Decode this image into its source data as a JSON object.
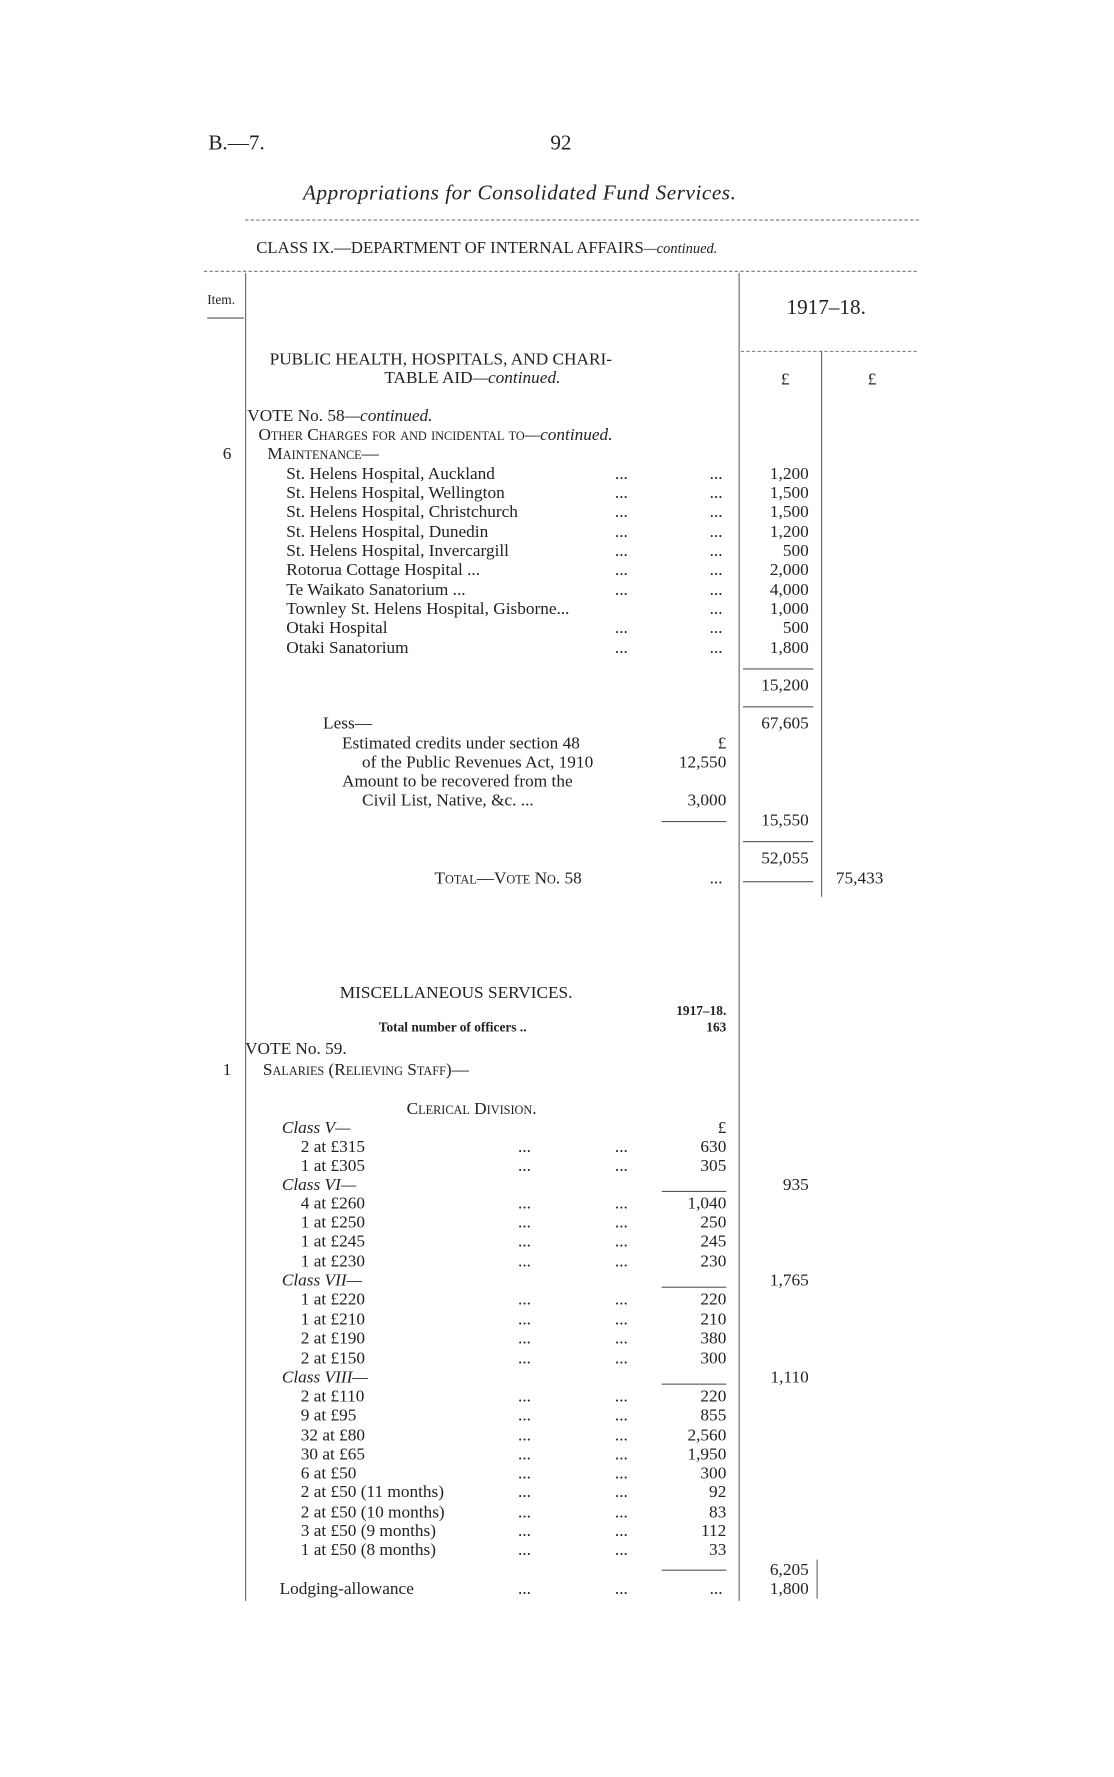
{
  "header": {
    "code": "B.—7.",
    "page_number": "92",
    "title": "Appropriations for Consolidated Fund Services.",
    "class_title": "CLASS IX.—DEPARTMENT OF INTERNAL AFFAIRS",
    "class_title_em": "—continued."
  },
  "table_header": {
    "item": "Item.",
    "year": "1917–18.",
    "currency_1": "£",
    "currency_2": "£"
  },
  "rows": [
    {
      "text": "PUBLIC HEALTH, HOSPITALS, AND CHARI-",
      "indent": 242
    },
    {
      "text": "TABLE AID",
      "em": "—continued.",
      "indent": 345
    },
    {
      "text": "VOTE No. 58",
      "em": "—continued.",
      "indent": 222
    },
    {
      "text": "Other Charges for and incidental to",
      "em": "—continued.",
      "indent": 232,
      "sc": true
    },
    {
      "item": "6",
      "text": "Maintenance—",
      "indent": 240,
      "sc": true
    },
    {
      "text": "St. Helens Hospital, Auckland",
      "indent": 257,
      "dots": true,
      "c1": "1,200"
    },
    {
      "text": "St. Helens Hospital, Wellington",
      "indent": 257,
      "dots": true,
      "c1": "1,500"
    },
    {
      "text": "St. Helens Hospital, Christchurch",
      "indent": 257,
      "dots": true,
      "c1": "1,500"
    },
    {
      "text": "St. Helens Hospital, Dunedin",
      "indent": 257,
      "dots": true,
      "c1": "1,200"
    },
    {
      "text": "St. Helens Hospital, Invercargill",
      "indent": 257,
      "dots": true,
      "c1": "500"
    },
    {
      "text": "Rotorua Cottage Hospital   ...",
      "indent": 257,
      "dots": true,
      "c1": "2,000"
    },
    {
      "text": "Te Waikato Sanatorium      ...",
      "indent": 257,
      "dots": true,
      "c1": "4,000"
    },
    {
      "text": "Townley St. Helens Hospital, Gisborne...",
      "indent": 257,
      "dots2": true,
      "c1": "1,000"
    },
    {
      "text": "Otaki Hospital",
      "indent": 257,
      "dots": true,
      "c1": "500"
    },
    {
      "text": "Otaki Sanatorium",
      "indent": 257,
      "dots": true,
      "c1": "1,800"
    },
    {
      "c1": "15,200"
    },
    {
      "text": "Less—",
      "indent": 290,
      "c1": "67,605"
    },
    {
      "text": "Estimated credits under section 48",
      "indent": 307,
      "c0": "£"
    },
    {
      "text": "of the Public Revenues Act, 1910",
      "indent": 325,
      "c0": "12,550"
    },
    {
      "text": "Amount to be recovered from the",
      "indent": 307
    },
    {
      "text": "Civil List, Native, &c.        ...",
      "indent": 325,
      "c0": "3,000"
    },
    {
      "c1": "15,550"
    },
    {
      "c1": "52,055"
    },
    {
      "text": "Total—Vote No. 58",
      "indent": 390,
      "sc": true,
      "dots2": true,
      "c2": "75,433"
    },
    {
      "text": "MISCELLANEOUS SERVICES.",
      "indent": 305
    },
    {
      "c0": "1917–18.",
      "small": true
    },
    {
      "text": "Total number of officers          ..",
      "indent": 340,
      "small": true,
      "c0": "163"
    },
    {
      "text": "VOTE No. 59.",
      "indent": 220
    },
    {
      "item": "1",
      "text": "Salaries (Relieving Staff)—",
      "indent": 236,
      "sc": true
    },
    {
      "text": "Clerical Division.",
      "indent": 365,
      "sc": true
    },
    {
      "text": "Class V—",
      "indent": 253,
      "italic": true,
      "c0": "£"
    },
    {
      "text": "2 at £315",
      "indent": 270,
      "dots": true,
      "c0": "630"
    },
    {
      "text": "1 at £305",
      "indent": 270,
      "dots": true,
      "c0": "305"
    },
    {
      "text": "Class VI—",
      "indent": 253,
      "italic": true,
      "c1": "935"
    },
    {
      "text": "4 at £260",
      "indent": 270,
      "dots": true,
      "c0": "1,040"
    },
    {
      "text": "1 at £250",
      "indent": 270,
      "dots": true,
      "c0": "250"
    },
    {
      "text": "1 at £245",
      "indent": 270,
      "dots": true,
      "c0": "245"
    },
    {
      "text": "1 at £230",
      "indent": 270,
      "dots": true,
      "c0": "230"
    },
    {
      "text": "Class VII—",
      "indent": 253,
      "italic": true,
      "c1": "1,765"
    },
    {
      "text": "1 at £220",
      "indent": 270,
      "dots": true,
      "c0": "220"
    },
    {
      "text": "1 at £210",
      "indent": 270,
      "dots": true,
      "c0": "210"
    },
    {
      "text": "2 at £190",
      "indent": 270,
      "dots": true,
      "c0": "380"
    },
    {
      "text": "2 at £150",
      "indent": 270,
      "dots": true,
      "c0": "300"
    },
    {
      "text": "Class VIII—",
      "indent": 253,
      "italic": true,
      "c1": "1,110"
    },
    {
      "text": "2 at £110",
      "indent": 270,
      "dots": true,
      "c0": "220"
    },
    {
      "text": "9 at £95",
      "indent": 270,
      "dots": true,
      "c0": "855"
    },
    {
      "text": "32 at £80",
      "indent": 270,
      "dots": true,
      "c0": "2,560"
    },
    {
      "text": "30 at £65",
      "indent": 270,
      "dots": true,
      "c0": "1,950"
    },
    {
      "text": "6 at £50",
      "indent": 270,
      "dots": true,
      "c0": "300"
    },
    {
      "text": "2 at £50 (11 months)",
      "indent": 270,
      "dots": true,
      "c0": "92"
    },
    {
      "text": "2 at £50 (10 months)",
      "indent": 270,
      "dots": true,
      "c0": "83"
    },
    {
      "text": "3 at £50 (9 months)",
      "indent": 270,
      "dots": true,
      "c0": "112"
    },
    {
      "text": "1 at £50 (8 months)",
      "indent": 270,
      "dots": true,
      "c0": "33"
    },
    {
      "c1": "6,205"
    },
    {
      "text": "Lodging-allowance",
      "indent": 251,
      "dots": true,
      "dots3": true,
      "c1": "1,800"
    }
  ],
  "dots": "...",
  "colors": {
    "ink": "#222222",
    "paper": "#ffffff"
  }
}
